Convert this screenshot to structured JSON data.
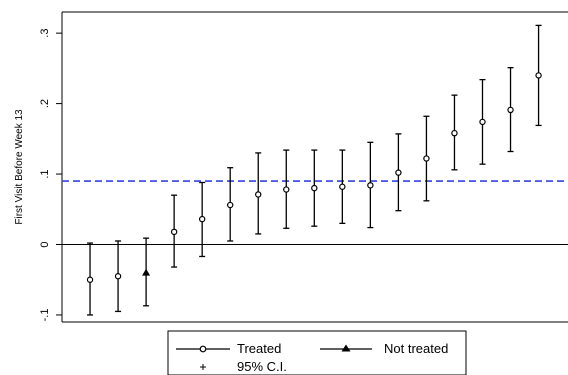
{
  "chart_data": {
    "type": "scatter",
    "title": "",
    "xlabel": "",
    "ylabel": "First Visit Before Week 13",
    "ylim": [
      -0.11,
      0.33
    ],
    "yticks": [
      -0.1,
      0,
      0.1,
      0.2,
      0.3
    ],
    "ytick_labels": [
      "-.1",
      "0",
      ".1",
      ".2",
      ".3"
    ],
    "x": [
      1,
      2,
      3,
      4,
      5,
      6,
      7,
      8,
      9,
      10,
      11,
      12,
      13,
      14,
      15,
      16,
      17,
      18
    ],
    "xlim": [
      0,
      18.05
    ],
    "reference_lines": [
      {
        "y": 0,
        "style": "solid",
        "color": "#000000"
      },
      {
        "y": 0.09,
        "style": "dashed",
        "color": "#3344dd"
      }
    ],
    "series": [
      {
        "name": "Treated",
        "marker": "circle",
        "points": [
          {
            "x": 1,
            "y": -0.05,
            "lo": -0.1,
            "hi": 0.002
          },
          {
            "x": 2,
            "y": -0.045,
            "lo": -0.095,
            "hi": 0.005
          },
          {
            "x": 4,
            "y": 0.018,
            "lo": -0.032,
            "hi": 0.07
          },
          {
            "x": 5,
            "y": 0.036,
            "lo": -0.017,
            "hi": 0.088
          },
          {
            "x": 6,
            "y": 0.056,
            "lo": 0.005,
            "hi": 0.109
          },
          {
            "x": 7,
            "y": 0.071,
            "lo": 0.015,
            "hi": 0.13
          },
          {
            "x": 8,
            "y": 0.078,
            "lo": 0.023,
            "hi": 0.134
          },
          {
            "x": 9,
            "y": 0.08,
            "lo": 0.026,
            "hi": 0.134
          },
          {
            "x": 10,
            "y": 0.082,
            "lo": 0.03,
            "hi": 0.134
          },
          {
            "x": 11,
            "y": 0.084,
            "lo": 0.024,
            "hi": 0.145
          },
          {
            "x": 12,
            "y": 0.102,
            "lo": 0.048,
            "hi": 0.157
          },
          {
            "x": 13,
            "y": 0.122,
            "lo": 0.062,
            "hi": 0.182
          },
          {
            "x": 14,
            "y": 0.158,
            "lo": 0.106,
            "hi": 0.212
          },
          {
            "x": 15,
            "y": 0.174,
            "lo": 0.114,
            "hi": 0.234
          },
          {
            "x": 16,
            "y": 0.191,
            "lo": 0.132,
            "hi": 0.251
          },
          {
            "x": 17,
            "y": 0.24,
            "lo": 0.169,
            "hi": 0.311
          }
        ]
      },
      {
        "name": "Not treated",
        "marker": "triangle",
        "points": [
          {
            "x": 3,
            "y": -0.04,
            "lo": -0.087,
            "hi": 0.009
          }
        ]
      }
    ],
    "ci_label": "95% C.I.",
    "legend": {
      "position": "bottom",
      "entries": [
        "Treated",
        "Not treated",
        "95% C.I."
      ]
    },
    "colors": {
      "markers": "#000000",
      "ci_bars": "#000000",
      "reference_dashed": "#3344dd"
    }
  }
}
